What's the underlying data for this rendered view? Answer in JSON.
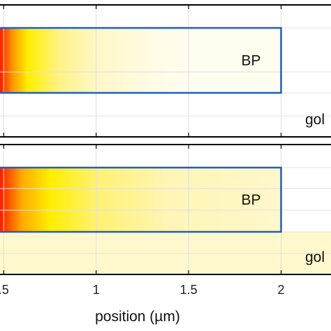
{
  "chart_data": {
    "type": "heatmap",
    "xlabel": "position (µm)",
    "xlim": [
      0.48,
      2.27
    ],
    "x_ticks": [
      {
        "value": 0.5,
        "label": ".5"
      },
      {
        "value": 1.0,
        "label": "1"
      },
      {
        "value": 1.5,
        "label": "1.5"
      },
      {
        "value": 2.0,
        "label": "2"
      }
    ],
    "grid": true,
    "bp_region_end": 2.0,
    "panels": [
      {
        "name": "upper",
        "labels": {
          "bp": "BP",
          "gold": "gol"
        },
        "bp_gradient": [
          {
            "x": 0.48,
            "intensity": 1.0
          },
          {
            "x": 0.55,
            "intensity": 0.75
          },
          {
            "x": 0.63,
            "intensity": 0.5
          },
          {
            "x": 0.8,
            "intensity": 0.3
          },
          {
            "x": 1.0,
            "intensity": 0.15
          },
          {
            "x": 1.3,
            "intensity": 0.04
          },
          {
            "x": 1.5,
            "intensity": 0.0
          }
        ],
        "gold_layer_intensity": 0.0
      },
      {
        "name": "lower",
        "labels": {
          "bp": "BP",
          "gold": "gol"
        },
        "bp_gradient": [
          {
            "x": 0.48,
            "intensity": 1.0
          },
          {
            "x": 0.6,
            "intensity": 0.7
          },
          {
            "x": 0.75,
            "intensity": 0.5
          },
          {
            "x": 1.0,
            "intensity": 0.33
          },
          {
            "x": 1.4,
            "intensity": 0.2
          },
          {
            "x": 2.0,
            "intensity": 0.13
          }
        ],
        "gold_layer_intensity": 0.12
      }
    ]
  },
  "colors": {
    "colormap": [
      "#fffcf0",
      "#fff3a8",
      "#ffee00",
      "#ff9a00",
      "#ff1e00"
    ],
    "bp_outline": "#1f5fbf",
    "frame": "#000000",
    "grid": "#e0e0e0"
  }
}
